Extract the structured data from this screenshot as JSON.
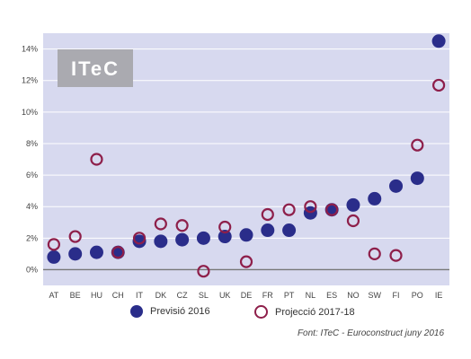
{
  "logo": {
    "text": "ITeC",
    "color": "#aaaab0"
  },
  "colors": {
    "plot_bg": "#d7d9ef",
    "grid": "#ffffff",
    "zero_line": "#777777",
    "forecast": "#2a2d8a",
    "projection": "#8e1f4a"
  },
  "legend": {
    "forecast_label": "Previsió 2016",
    "projection_label": "Projecció 2017-18"
  },
  "source": "Font: ITeC - Euroconstruct juny 2016",
  "chart_data": {
    "type": "scatter",
    "title": "",
    "xlabel": "",
    "ylabel": "",
    "categories": [
      "AT",
      "BE",
      "HU",
      "CH",
      "IT",
      "DK",
      "CZ",
      "SL",
      "UK",
      "DE",
      "FR",
      "PT",
      "NL",
      "ES",
      "NO",
      "SW",
      "FI",
      "PO",
      "IE"
    ],
    "ylim": [
      -1,
      15
    ],
    "yticks": [
      0,
      2,
      4,
      6,
      8,
      10,
      12,
      14
    ],
    "ytick_labels": [
      "0%",
      "2%",
      "4%",
      "6%",
      "8%",
      "10%",
      "12%",
      "14%"
    ],
    "grid": true,
    "legend_position": "bottom",
    "series": [
      {
        "name": "Previsió 2016",
        "marker": "filled-circle",
        "values": [
          0.8,
          1.0,
          1.1,
          1.1,
          1.8,
          1.8,
          1.9,
          2.0,
          2.1,
          2.2,
          2.5,
          2.5,
          3.6,
          3.8,
          4.1,
          4.5,
          5.3,
          5.8,
          14.5
        ]
      },
      {
        "name": "Projecció 2017-18",
        "marker": "open-circle",
        "values": [
          1.6,
          2.1,
          7.0,
          1.1,
          2.0,
          2.9,
          2.8,
          -0.1,
          2.7,
          0.5,
          3.5,
          3.8,
          4.0,
          3.8,
          3.1,
          1.0,
          0.9,
          7.9,
          11.7
        ]
      }
    ]
  }
}
